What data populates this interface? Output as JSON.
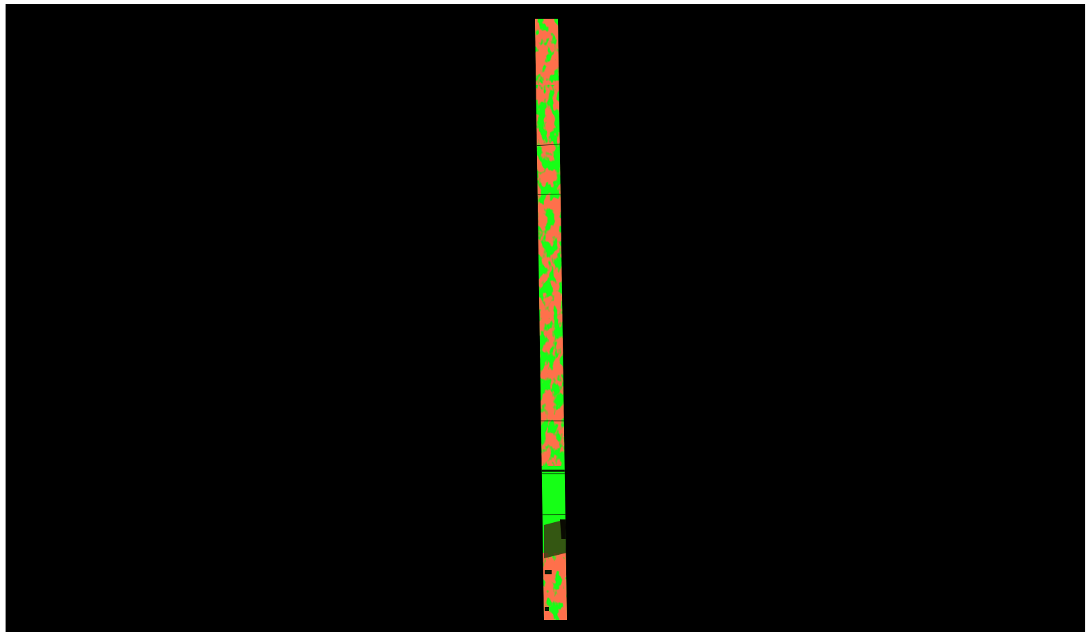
{
  "viewer": {
    "background_color": "#000000",
    "frame_color": "#ffffff"
  },
  "strip": {
    "description_icon": "map-strip-raster",
    "colors": {
      "low": "#16ff16",
      "high": "#ff2a12",
      "dark": "#1a1a0a",
      "seam": "#0b1a05"
    }
  }
}
